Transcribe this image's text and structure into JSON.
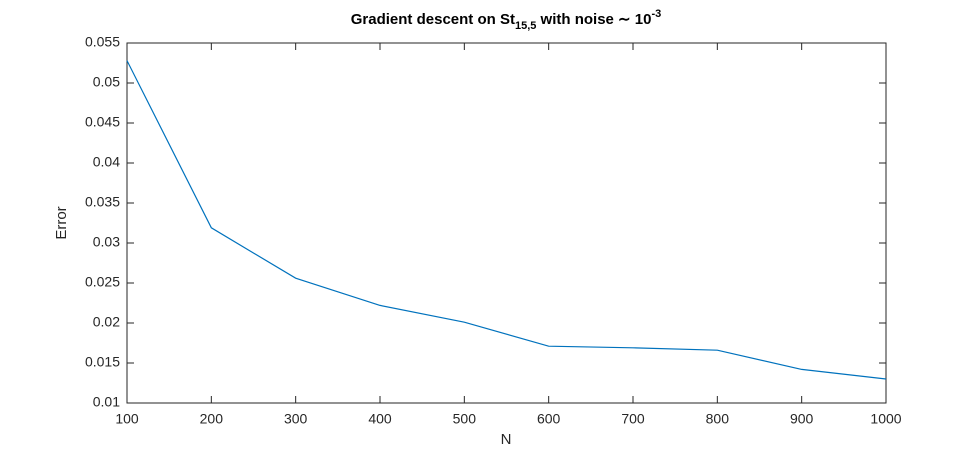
{
  "chart_data": {
    "type": "line",
    "title": [
      {
        "text": "Gradient descent on St"
      },
      {
        "text": "15,5",
        "shift": "sub"
      },
      {
        "text": " with noise ∼ 10"
      },
      {
        "text": "-3",
        "shift": "super"
      }
    ],
    "xlabel": "N",
    "ylabel": "Error",
    "x": [
      100,
      200,
      300,
      400,
      500,
      600,
      700,
      800,
      900,
      1000
    ],
    "series": [
      {
        "name": "Error",
        "color": "#0072bd",
        "values": [
          0.0528,
          0.0319,
          0.0256,
          0.0222,
          0.0201,
          0.0171,
          0.0169,
          0.0166,
          0.0142,
          0.013
        ]
      }
    ],
    "xlim": [
      100,
      1000
    ],
    "ylim": [
      0.01,
      0.055
    ],
    "xticks": [
      100,
      200,
      300,
      400,
      500,
      600,
      700,
      800,
      900,
      1000
    ],
    "yticks": [
      0.01,
      0.015,
      0.02,
      0.025,
      0.03,
      0.035,
      0.04,
      0.045,
      0.05,
      0.055
    ],
    "grid": false,
    "box": true
  }
}
